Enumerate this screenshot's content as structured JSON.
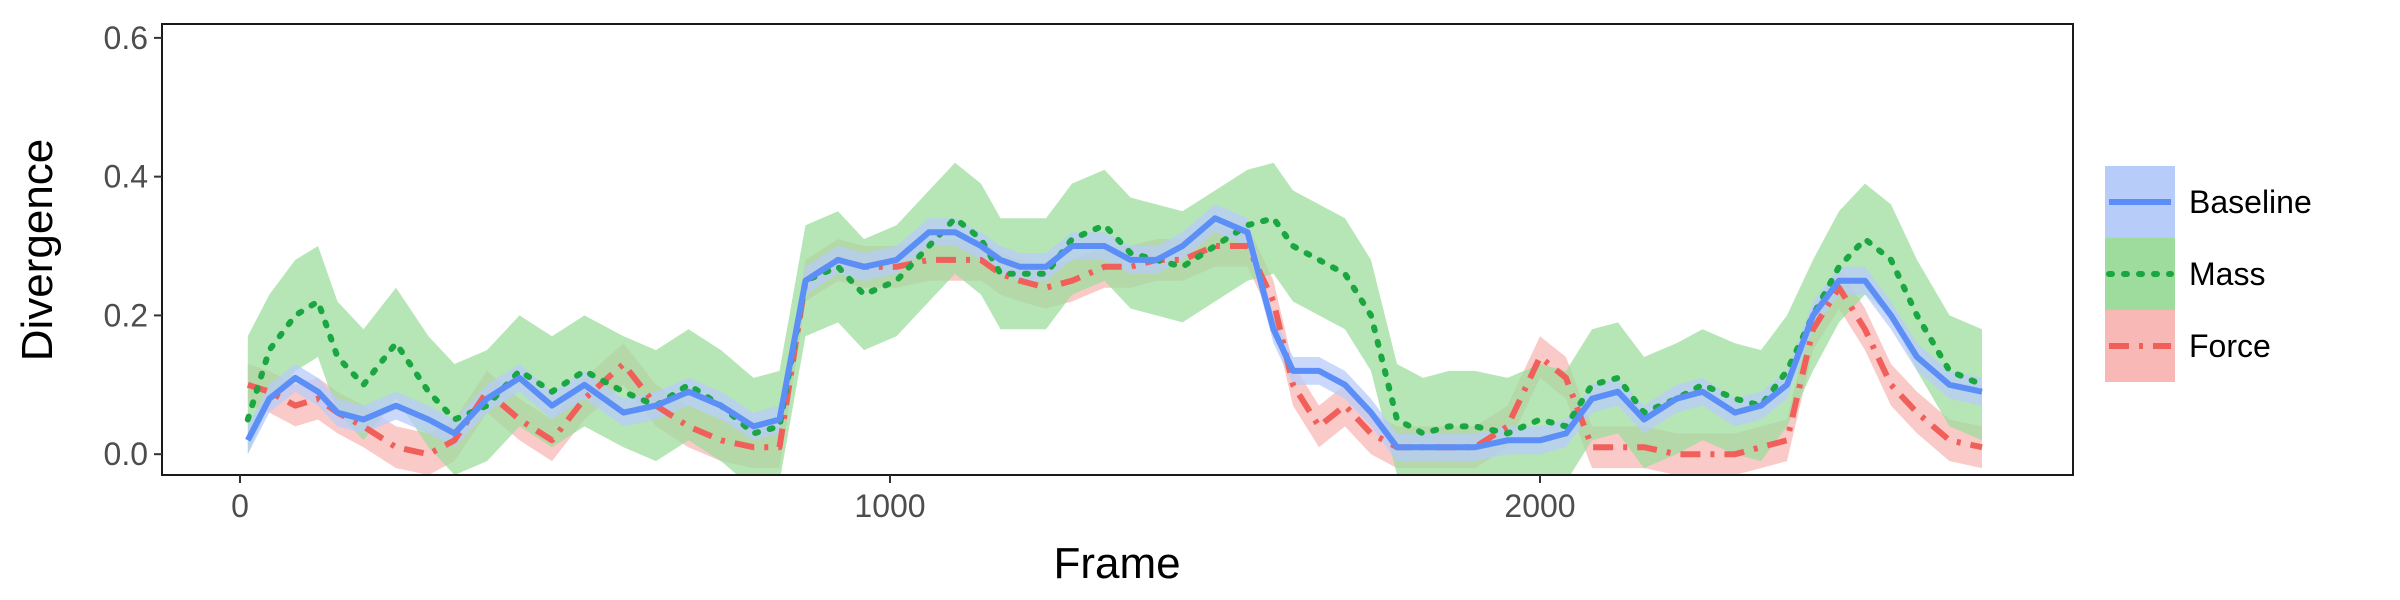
{
  "chart_data": {
    "type": "line",
    "title": "",
    "xlabel": "Frame",
    "ylabel": "Divergence",
    "xlim": [
      -120,
      2820
    ],
    "ylim": [
      -0.03,
      0.62
    ],
    "xticks": [
      0,
      1000,
      2000
    ],
    "xtick_labels": [
      "0",
      "1000",
      "2000"
    ],
    "yticks": [
      0.0,
      0.2,
      0.4,
      0.6
    ],
    "ytick_labels": [
      "0.0",
      "0.2",
      "0.4",
      "0.6"
    ],
    "grid": false,
    "legend_position": "right",
    "x": [
      12,
      45,
      85,
      120,
      150,
      190,
      240,
      290,
      330,
      380,
      430,
      480,
      530,
      590,
      640,
      690,
      740,
      790,
      830,
      870,
      920,
      960,
      1010,
      1060,
      1100,
      1140,
      1170,
      1200,
      1240,
      1280,
      1330,
      1370,
      1410,
      1450,
      1500,
      1550,
      1590,
      1620,
      1660,
      1700,
      1740,
      1780,
      1820,
      1860,
      1900,
      1950,
      2000,
      2040,
      2080,
      2120,
      2160,
      2210,
      2250,
      2300,
      2340,
      2380,
      2420,
      2460,
      2500,
      2540,
      2580,
      2630,
      2680
    ],
    "series": [
      {
        "name": "Baseline",
        "color": "#5b8ef6",
        "band_color": "#b8ccfa",
        "dash": "solid",
        "values": [
          0.02,
          0.08,
          0.11,
          0.09,
          0.06,
          0.05,
          0.07,
          0.05,
          0.03,
          0.08,
          0.11,
          0.07,
          0.1,
          0.06,
          0.07,
          0.09,
          0.07,
          0.04,
          0.05,
          0.25,
          0.28,
          0.27,
          0.28,
          0.32,
          0.32,
          0.3,
          0.28,
          0.27,
          0.27,
          0.3,
          0.3,
          0.28,
          0.28,
          0.3,
          0.34,
          0.32,
          0.18,
          0.12,
          0.12,
          0.1,
          0.06,
          0.01,
          0.01,
          0.01,
          0.01,
          0.02,
          0.02,
          0.03,
          0.08,
          0.09,
          0.05,
          0.08,
          0.09,
          0.06,
          0.07,
          0.1,
          0.2,
          0.25,
          0.25,
          0.2,
          0.14,
          0.1,
          0.09
        ],
        "lower": [
          0.0,
          0.06,
          0.09,
          0.07,
          0.04,
          0.03,
          0.05,
          0.03,
          0.01,
          0.06,
          0.09,
          0.05,
          0.08,
          0.04,
          0.05,
          0.07,
          0.05,
          0.02,
          0.03,
          0.23,
          0.26,
          0.25,
          0.26,
          0.3,
          0.3,
          0.28,
          0.26,
          0.25,
          0.25,
          0.28,
          0.28,
          0.26,
          0.26,
          0.28,
          0.32,
          0.3,
          0.16,
          0.1,
          0.1,
          0.08,
          0.04,
          -0.01,
          -0.01,
          -0.01,
          -0.01,
          0.0,
          0.0,
          0.01,
          0.06,
          0.07,
          0.03,
          0.06,
          0.07,
          0.04,
          0.05,
          0.08,
          0.18,
          0.23,
          0.23,
          0.18,
          0.12,
          0.08,
          0.07
        ],
        "upper": [
          0.04,
          0.1,
          0.13,
          0.11,
          0.08,
          0.07,
          0.09,
          0.07,
          0.05,
          0.1,
          0.13,
          0.09,
          0.12,
          0.08,
          0.09,
          0.11,
          0.09,
          0.06,
          0.07,
          0.27,
          0.3,
          0.29,
          0.3,
          0.34,
          0.34,
          0.32,
          0.3,
          0.29,
          0.29,
          0.32,
          0.32,
          0.3,
          0.3,
          0.32,
          0.36,
          0.34,
          0.2,
          0.14,
          0.14,
          0.12,
          0.08,
          0.03,
          0.03,
          0.03,
          0.03,
          0.04,
          0.04,
          0.05,
          0.1,
          0.11,
          0.07,
          0.1,
          0.11,
          0.08,
          0.09,
          0.12,
          0.22,
          0.27,
          0.27,
          0.22,
          0.16,
          0.12,
          0.11
        ]
      },
      {
        "name": "Mass",
        "color": "#1aa641",
        "band_color": "#9edc9d",
        "dash": "dotted",
        "values": [
          0.05,
          0.15,
          0.2,
          0.22,
          0.14,
          0.1,
          0.16,
          0.09,
          0.05,
          0.07,
          0.12,
          0.09,
          0.12,
          0.09,
          0.07,
          0.1,
          0.07,
          0.03,
          0.04,
          0.25,
          0.27,
          0.23,
          0.25,
          0.3,
          0.34,
          0.31,
          0.26,
          0.26,
          0.26,
          0.31,
          0.33,
          0.29,
          0.28,
          0.27,
          0.3,
          0.33,
          0.34,
          0.3,
          0.28,
          0.26,
          0.2,
          0.05,
          0.03,
          0.04,
          0.04,
          0.03,
          0.05,
          0.04,
          0.1,
          0.11,
          0.06,
          0.08,
          0.1,
          0.08,
          0.07,
          0.12,
          0.2,
          0.27,
          0.31,
          0.28,
          0.2,
          0.12,
          0.1
        ],
        "lower": [
          0.0,
          0.07,
          0.12,
          0.14,
          0.06,
          0.02,
          0.08,
          0.01,
          -0.03,
          -0.01,
          0.04,
          0.01,
          0.04,
          0.01,
          -0.01,
          0.02,
          -0.01,
          -0.05,
          -0.04,
          0.17,
          0.19,
          0.15,
          0.17,
          0.22,
          0.26,
          0.23,
          0.18,
          0.18,
          0.18,
          0.23,
          0.25,
          0.21,
          0.2,
          0.19,
          0.22,
          0.25,
          0.26,
          0.22,
          0.2,
          0.18,
          0.12,
          -0.03,
          -0.05,
          -0.04,
          -0.04,
          -0.05,
          -0.03,
          -0.04,
          0.02,
          0.03,
          -0.02,
          0.0,
          0.02,
          0.0,
          -0.01,
          0.04,
          0.12,
          0.19,
          0.23,
          0.2,
          0.12,
          0.04,
          0.02
        ],
        "upper": [
          0.17,
          0.23,
          0.28,
          0.3,
          0.22,
          0.18,
          0.24,
          0.17,
          0.13,
          0.15,
          0.2,
          0.17,
          0.2,
          0.17,
          0.15,
          0.18,
          0.15,
          0.11,
          0.12,
          0.33,
          0.35,
          0.31,
          0.33,
          0.38,
          0.42,
          0.39,
          0.34,
          0.34,
          0.34,
          0.39,
          0.41,
          0.37,
          0.36,
          0.35,
          0.38,
          0.41,
          0.42,
          0.38,
          0.36,
          0.34,
          0.28,
          0.13,
          0.11,
          0.12,
          0.12,
          0.11,
          0.13,
          0.12,
          0.18,
          0.19,
          0.14,
          0.16,
          0.18,
          0.16,
          0.15,
          0.2,
          0.28,
          0.35,
          0.39,
          0.36,
          0.28,
          0.2,
          0.18
        ]
      },
      {
        "name": "Force",
        "color": "#f15f5a",
        "band_color": "#f8b8b5",
        "dash": "dashdot",
        "values": [
          0.1,
          0.09,
          0.07,
          0.08,
          0.06,
          0.04,
          0.01,
          0.0,
          0.02,
          0.09,
          0.05,
          0.02,
          0.08,
          0.13,
          0.07,
          0.04,
          0.02,
          0.01,
          0.01,
          0.25,
          0.28,
          0.27,
          0.27,
          0.28,
          0.28,
          0.28,
          0.26,
          0.25,
          0.24,
          0.25,
          0.27,
          0.27,
          0.28,
          0.28,
          0.3,
          0.3,
          0.22,
          0.1,
          0.04,
          0.07,
          0.03,
          0.01,
          0.01,
          0.01,
          0.01,
          0.04,
          0.14,
          0.11,
          0.01,
          0.01,
          0.01,
          0.0,
          0.0,
          0.0,
          0.01,
          0.02,
          0.18,
          0.24,
          0.18,
          0.1,
          0.06,
          0.02,
          0.01
        ],
        "lower": [
          0.07,
          0.06,
          0.04,
          0.05,
          0.03,
          0.01,
          -0.02,
          -0.03,
          -0.01,
          0.06,
          0.02,
          -0.01,
          0.05,
          0.1,
          0.04,
          0.01,
          -0.01,
          -0.02,
          -0.02,
          0.22,
          0.25,
          0.24,
          0.24,
          0.25,
          0.25,
          0.25,
          0.23,
          0.22,
          0.21,
          0.22,
          0.24,
          0.24,
          0.25,
          0.25,
          0.27,
          0.27,
          0.19,
          0.07,
          0.01,
          0.04,
          0.0,
          -0.02,
          -0.02,
          -0.02,
          -0.02,
          0.01,
          0.11,
          0.08,
          -0.02,
          -0.02,
          -0.02,
          -0.03,
          -0.03,
          -0.03,
          -0.02,
          -0.01,
          0.15,
          0.21,
          0.15,
          0.07,
          0.03,
          -0.01,
          -0.02
        ],
        "upper": [
          0.13,
          0.12,
          0.1,
          0.11,
          0.09,
          0.07,
          0.04,
          0.03,
          0.05,
          0.12,
          0.08,
          0.05,
          0.11,
          0.16,
          0.1,
          0.07,
          0.05,
          0.04,
          0.04,
          0.28,
          0.31,
          0.3,
          0.3,
          0.31,
          0.31,
          0.31,
          0.29,
          0.28,
          0.27,
          0.28,
          0.3,
          0.3,
          0.31,
          0.31,
          0.33,
          0.33,
          0.25,
          0.13,
          0.07,
          0.1,
          0.06,
          0.04,
          0.04,
          0.04,
          0.04,
          0.07,
          0.17,
          0.14,
          0.04,
          0.04,
          0.04,
          0.03,
          0.03,
          0.03,
          0.04,
          0.05,
          0.21,
          0.27,
          0.21,
          0.13,
          0.09,
          0.05,
          0.04
        ]
      }
    ]
  }
}
